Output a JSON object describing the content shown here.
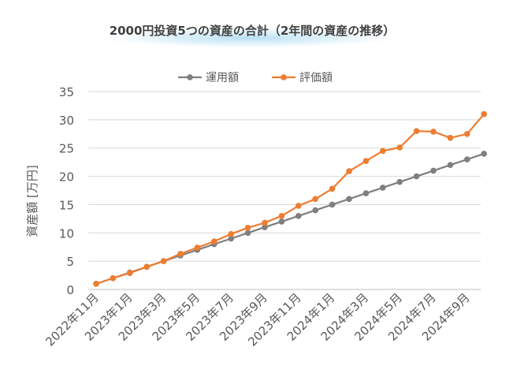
{
  "chart_data": {
    "type": "line",
    "title": "2000円投資5つの資産の合計（2年間の資産の推移）",
    "xlabel": "",
    "ylabel": "資産額 [万円]",
    "ylim": [
      0,
      35
    ],
    "yticks": [
      0,
      5,
      10,
      15,
      20,
      25,
      30,
      35
    ],
    "grid": true,
    "legend_position": "top",
    "categories": [
      "2022年11月",
      "2022年12月",
      "2023年1月",
      "2023年2月",
      "2023年3月",
      "2023年4月",
      "2023年5月",
      "2023年6月",
      "2023年7月",
      "2023年8月",
      "2023年9月",
      "2023年10月",
      "2023年11月",
      "2023年12月",
      "2024年1月",
      "2024年2月",
      "2024年3月",
      "2024年4月",
      "2024年5月",
      "2024年6月",
      "2024年7月",
      "2024年8月",
      "2024年9月",
      "2024年10月"
    ],
    "tick_labels": [
      "2022年11月",
      "2023年1月",
      "2023年3月",
      "2023年5月",
      "2023年7月",
      "2023年9月",
      "2023年11月",
      "2024年1月",
      "2024年3月",
      "2024年5月",
      "2024年7月",
      "2024年9月"
    ],
    "series": [
      {
        "name": "運用額",
        "color": "#7f7f7f",
        "values": [
          1,
          2,
          3,
          4,
          5,
          6,
          7,
          8,
          9,
          10,
          11,
          12,
          13,
          14,
          15,
          16,
          17,
          18,
          19,
          20,
          21,
          22,
          23,
          24
        ]
      },
      {
        "name": "評価額",
        "color": "#ed7d31",
        "values": [
          1,
          2,
          2.9,
          4,
          5,
          6.3,
          7.4,
          8.5,
          9.8,
          10.9,
          11.8,
          13,
          14.8,
          16,
          17.8,
          20.9,
          22.7,
          24.5,
          25.1,
          28,
          27.9,
          26.8,
          27.5,
          31
        ]
      }
    ]
  }
}
